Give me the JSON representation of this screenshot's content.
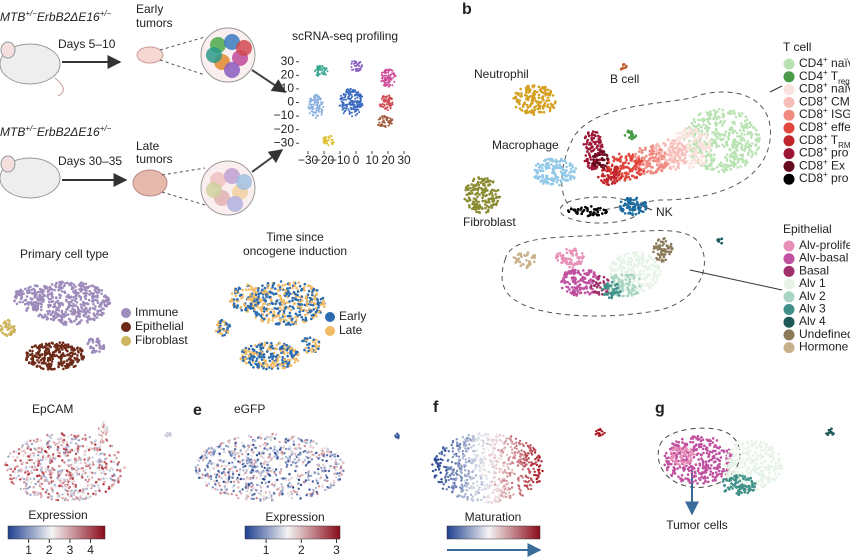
{
  "panel_a": {
    "genotype_early": [
      "MTB",
      {
        "sup": "+/−"
      },
      "ErbB2ΔE16",
      {
        "sup": "+/−"
      }
    ],
    "days_early": "Days 5–10",
    "early_tumors": [
      "Early",
      "tumors"
    ],
    "scrna_title": "scRNA-seq profiling",
    "scatter": {
      "xlim": [
        -35,
        35
      ],
      "ylim": [
        -35,
        35
      ],
      "xticks": [
        {
          "value": -30,
          "label": "−30"
        },
        {
          "value": -20,
          "label": "−20"
        },
        {
          "value": -10,
          "label": "−10"
        },
        0,
        10,
        20,
        30
      ],
      "yticks": [
        30,
        20,
        10,
        0,
        {
          "value": -10,
          "label": "−10"
        },
        {
          "value": -20,
          "label": "−20"
        },
        {
          "value": -30,
          "label": "−30"
        }
      ]
    },
    "genotype_late": [
      "MTB",
      {
        "sup": "+/−"
      },
      "ErbB2ΔE16",
      {
        "sup": "+/−"
      }
    ],
    "days_late": "Days 30–35",
    "late_tumors": [
      "Late",
      "tumors"
    ],
    "primary_title": "Primary cell type",
    "primary_legend": [
      {
        "name": "Immune",
        "color": "#9d8bbb"
      },
      {
        "name": "Epithelial",
        "color": "#6e2a18"
      },
      {
        "name": "Fibroblast",
        "color": "#cdb45e"
      }
    ],
    "time_title": [
      "Time since",
      "oncogene induction"
    ],
    "time_legend": [
      {
        "name": "Early",
        "color": "#2b6cb0"
      },
      {
        "name": "Late",
        "color": "#f2bc66"
      }
    ]
  },
  "panel_b": {
    "label": "b",
    "clusters": {
      "neutrophil": "Neutrophil",
      "b_cell": "B cell",
      "macrophage": "Macrophage",
      "fibroblast": "Fibroblast",
      "nk": "NK"
    },
    "t_cell_legend": {
      "title": "T cell",
      "items": [
        {
          "label": [
            "CD4",
            {
              "sup": "+"
            },
            " naïv"
          ],
          "color": "#b9e2b2"
        },
        {
          "label": [
            "CD4",
            {
              "sup": "+"
            },
            " T",
            {
              "sub": "reg"
            }
          ],
          "color": "#4a9a4a"
        },
        {
          "label": [
            "CD8",
            {
              "sup": "+"
            },
            " naïv"
          ],
          "color": "#fce2de"
        },
        {
          "label": [
            "CD8",
            {
              "sup": "+"
            },
            " CM"
          ],
          "color": "#f7beb9"
        },
        {
          "label": [
            "CD8",
            {
              "sup": "+"
            },
            " ISG"
          ],
          "color": "#f08a80"
        },
        {
          "label": [
            "CD8",
            {
              "sup": "+"
            },
            " effe"
          ],
          "color": "#e0463c"
        },
        {
          "label": [
            "CD8",
            {
              "sup": "+"
            },
            " T",
            {
              "sub": "RM"
            }
          ],
          "color": "#c0262c"
        },
        {
          "label": [
            "CD8",
            {
              "sup": "+"
            },
            " pro"
          ],
          "color": "#9e1636"
        },
        {
          "label": [
            "CD8",
            {
              "sup": "+"
            },
            " Ex"
          ],
          "color": "#650a1c"
        },
        {
          "label": [
            "CD8",
            {
              "sup": "+"
            },
            " pro"
          ],
          "color": "#000000"
        }
      ]
    },
    "epithelial_legend": {
      "title": "Epithelial",
      "items": [
        {
          "label": [
            "Alv-proliferati"
          ],
          "color": "#e890b8"
        },
        {
          "label": [
            "Alv-basal"
          ],
          "color": "#c050a0"
        },
        {
          "label": [
            "Basal"
          ],
          "color": "#a0306a"
        },
        {
          "label": [
            "Alv 1"
          ],
          "color": "#e6f3e6"
        },
        {
          "label": [
            "Alv 2"
          ],
          "color": "#a8d4c4"
        },
        {
          "label": [
            "Alv 3"
          ],
          "color": "#40908a"
        },
        {
          "label": [
            "Alv 4"
          ],
          "color": "#1f5a5a"
        },
        {
          "label": [
            "Undefined alv"
          ],
          "color": "#8a7a5a"
        },
        {
          "label": [
            "Hormone sens"
          ],
          "color": "#c8b08a"
        }
      ]
    }
  },
  "panel_d": {
    "title": "EpCAM",
    "colorbar": {
      "title": "Expression",
      "lim": [
        0,
        4.7
      ],
      "ticks": [
        1,
        2,
        3,
        4
      ]
    }
  },
  "panel_e": {
    "label": "e",
    "title": "eGFP",
    "colorbar": {
      "title": "Expression",
      "lim": [
        0.4,
        3.1
      ],
      "ticks": [
        1,
        2,
        3
      ]
    }
  },
  "panel_f": {
    "label": "f",
    "colorbar": {
      "title": "Maturation"
    }
  },
  "panel_g": {
    "label": "g",
    "annotation": "Tumor cells"
  }
}
